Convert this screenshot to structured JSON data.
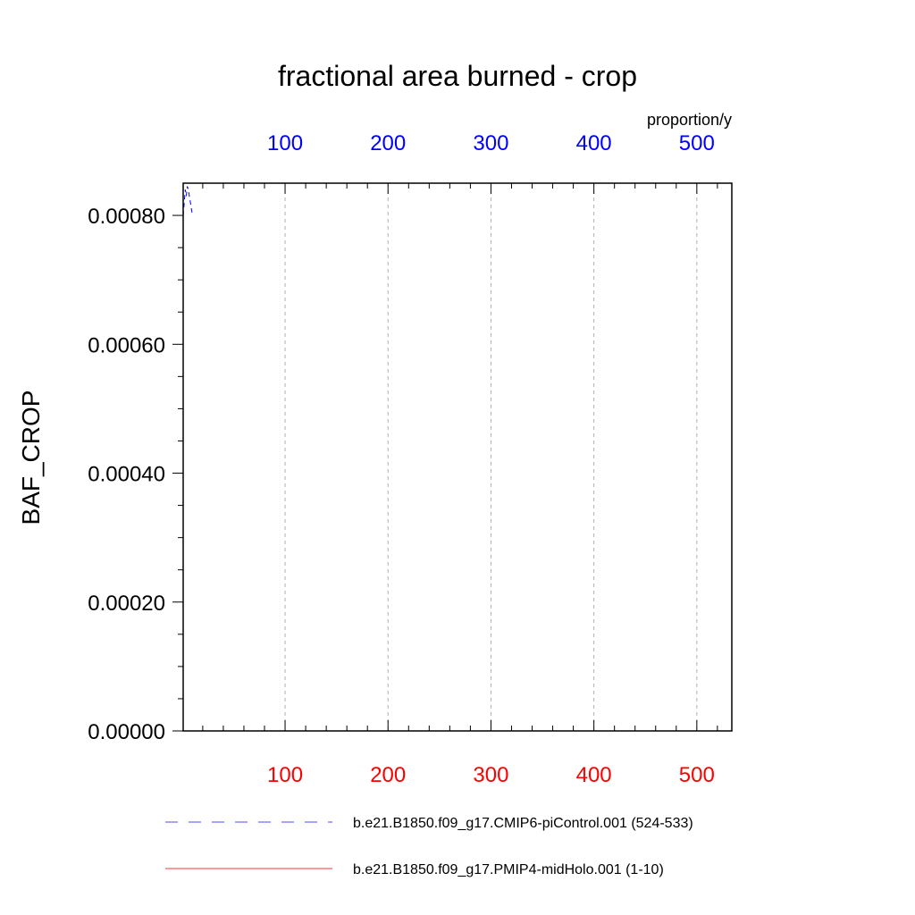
{
  "chart_data": {
    "type": "line",
    "title": "fractional area burned - crop",
    "ylabel": "BAF_CROP",
    "top_axis_units": "proportion/y",
    "xlim": [
      1,
      534
    ],
    "ylim": [
      0,
      0.00085
    ],
    "x_ticks": [
      100,
      200,
      300,
      400,
      500
    ],
    "x_tick_labels": [
      "100",
      "200",
      "300",
      "400",
      "500"
    ],
    "y_ticks": [
      0,
      0.0002,
      0.0004,
      0.0006,
      0.0008
    ],
    "y_tick_labels": [
      "0.00000",
      "0.00020",
      "0.00040",
      "0.00060",
      "0.00080"
    ],
    "grid": "vertical dashed at major x ticks",
    "legend_position": "bottom",
    "series": [
      {
        "name": "b.e21.B1850.f09_g17.CMIP6-piControl.001 (524-533)",
        "color": "#0000ff",
        "style": "dashed",
        "axis": "top",
        "x": [
          1,
          2,
          3,
          4,
          5,
          6,
          7,
          8,
          9,
          10
        ],
        "y": [
          0.0008,
          0.00082,
          0.00084,
          0.00083,
          0.000845,
          0.00084,
          0.00083,
          0.00082,
          0.00081,
          0.0008
        ]
      },
      {
        "name": "b.e21.B1850.f09_g17.PMIP4-midHolo.001 (1-10)",
        "color": "#ff0000",
        "style": "solid",
        "axis": "bottom",
        "x": [],
        "y": []
      }
    ]
  },
  "colors": {
    "top_axis_labels": "#0000ff",
    "bottom_axis_labels": "#ff0000",
    "grid": "#b0b0b0"
  }
}
